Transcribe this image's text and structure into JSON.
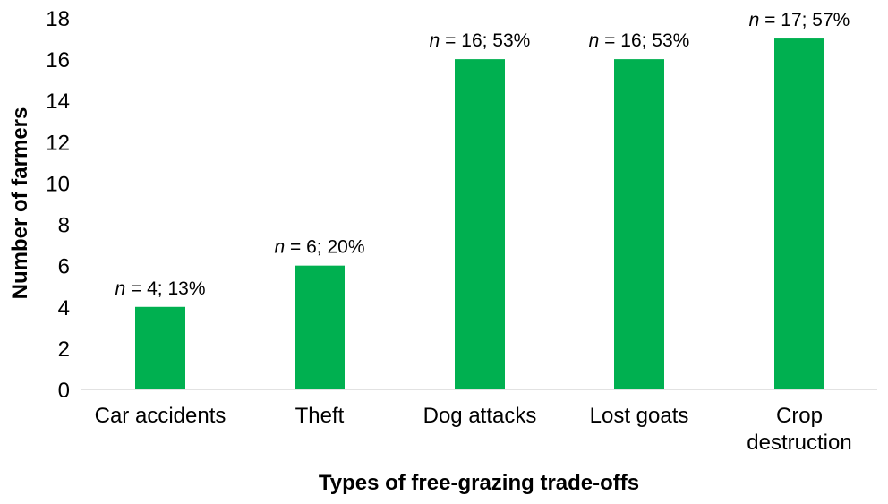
{
  "chart_data": {
    "type": "bar",
    "categories": [
      "Car accidents",
      "Theft",
      "Dog attacks",
      "Lost goats",
      "Crop destruction"
    ],
    "category_lines": [
      [
        "Car accidents"
      ],
      [
        "Theft"
      ],
      [
        "Dog attacks"
      ],
      [
        "Lost goats"
      ],
      [
        "Crop",
        "destruction"
      ]
    ],
    "values": [
      4,
      6,
      16,
      16,
      17
    ],
    "data_labels": [
      {
        "n_symbol": "n",
        "text": " = 4; 13%"
      },
      {
        "n_symbol": "n",
        "text": " = 6; 20%"
      },
      {
        "n_symbol": "n",
        "text": " = 16; 53%"
      },
      {
        "n_symbol": "n",
        "text": " = 16; 53%"
      },
      {
        "n_symbol": "n",
        "text": " = 17; 57%"
      }
    ],
    "xlabel": "Types of free-grazing trade-offs",
    "ylabel": "Number of farmers",
    "ylim": [
      0,
      18
    ],
    "yticks": [
      0,
      2,
      4,
      6,
      8,
      10,
      12,
      14,
      16,
      18
    ],
    "bar_color": "#00B050",
    "grid": false,
    "legend": "none"
  }
}
